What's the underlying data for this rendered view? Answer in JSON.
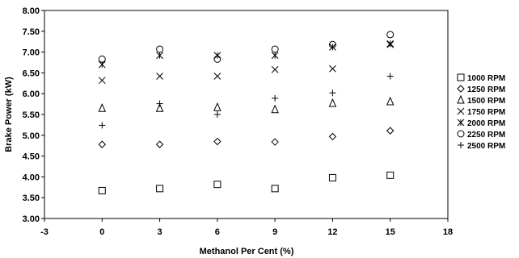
{
  "chart_data": {
    "type": "scatter",
    "title": "",
    "xlabel": "Methanol Per Cent (%)",
    "ylabel": "Brake Power (kW)",
    "xlim": [
      -3,
      18
    ],
    "ylim": [
      3.0,
      8.0
    ],
    "xticks": [
      "-3",
      "0",
      "3",
      "6",
      "9",
      "12",
      "15",
      "18"
    ],
    "yticks": [
      "3.00",
      "3.50",
      "4.00",
      "4.50",
      "5.00",
      "5.50",
      "6.00",
      "6.50",
      "7.00",
      "7.50",
      "8.00"
    ],
    "grid": false,
    "legend_position": "right",
    "x": [
      0,
      3,
      6,
      9,
      12,
      15
    ],
    "series": [
      {
        "name": "1000 RPM",
        "marker": "square",
        "values": [
          3.67,
          3.72,
          3.82,
          3.72,
          3.98,
          4.04
        ]
      },
      {
        "name": "1250 RPM",
        "marker": "diamond",
        "values": [
          4.78,
          4.78,
          4.85,
          4.84,
          4.97,
          5.11
        ]
      },
      {
        "name": "1500 RPM",
        "marker": "triangle",
        "values": [
          5.65,
          5.65,
          5.67,
          5.62,
          5.77,
          5.81
        ]
      },
      {
        "name": "1750 RPM",
        "marker": "x",
        "values": [
          6.32,
          6.42,
          6.42,
          6.58,
          6.6,
          7.18
        ]
      },
      {
        "name": "2000 RPM",
        "marker": "asterisk",
        "values": [
          6.7,
          6.92,
          6.92,
          6.92,
          7.12,
          7.2
        ]
      },
      {
        "name": "2250 RPM",
        "marker": "circle",
        "values": [
          6.83,
          7.07,
          6.83,
          7.07,
          7.18,
          7.42
        ]
      },
      {
        "name": "2500 RPM",
        "marker": "plus",
        "values": [
          5.24,
          5.76,
          5.5,
          5.89,
          6.02,
          6.42
        ]
      }
    ]
  }
}
